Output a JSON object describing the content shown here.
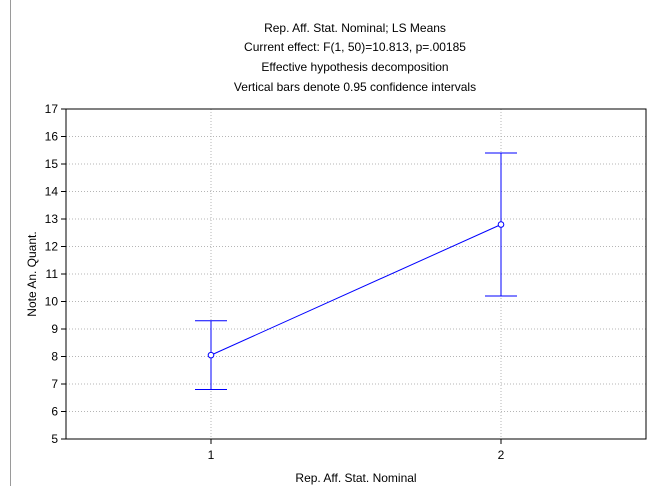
{
  "chart_data": {
    "type": "line",
    "title_lines": [
      "Rep. Aff. Stat. Nominal; LS Means",
      "Current effect: F(1, 50)=10.813, p=.00185",
      "Effective hypothesis decomposition",
      "Vertical bars denote 0.95 confidence intervals"
    ],
    "xlabel": "Rep. Aff. Stat. Nominal",
    "ylabel": "Note An. Quant.",
    "categories": [
      "1",
      "2"
    ],
    "series": [
      {
        "values": [
          8.05,
          12.8
        ],
        "ci_low": [
          6.8,
          10.2
        ],
        "ci_high": [
          9.3,
          15.4
        ],
        "color": "#0000ff"
      }
    ],
    "ylim": [
      5,
      17
    ],
    "yticks": [
      5,
      6,
      7,
      8,
      9,
      10,
      11,
      12,
      13,
      14,
      15,
      16,
      17
    ],
    "grid": true,
    "legend": "none"
  }
}
